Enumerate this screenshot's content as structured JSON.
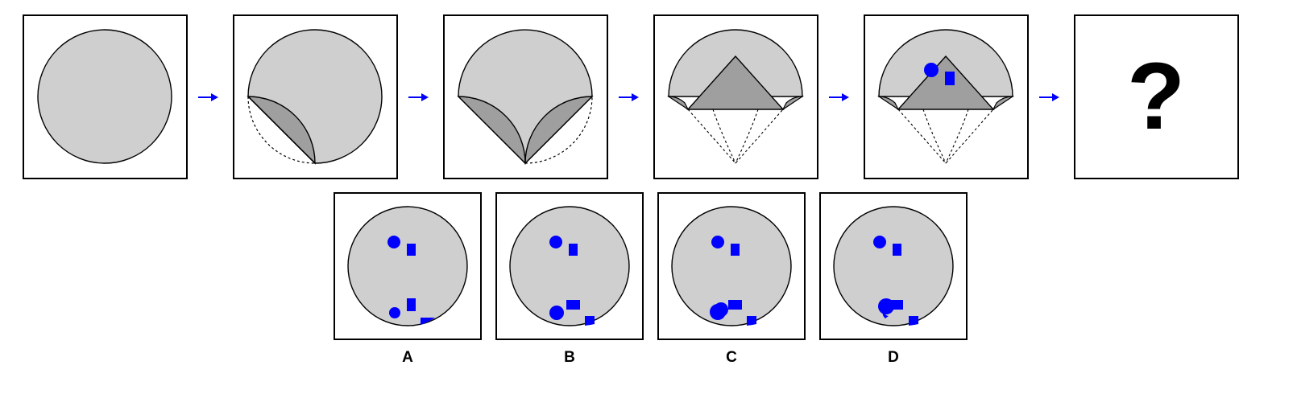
{
  "colors": {
    "paper": "#cfcfcf",
    "fold": "#9f9f9f",
    "mark": "#0000ff",
    "arrow": "#0000ff",
    "frame": "#000000",
    "background": "#ffffff"
  },
  "sequence": {
    "steps": [
      {
        "name": "step-1-whole-circle"
      },
      {
        "name": "step-2-bottom-left-fold"
      },
      {
        "name": "step-3-bottom-right-fold"
      },
      {
        "name": "step-4-bottom-tip-fold"
      },
      {
        "name": "step-5-punched"
      },
      {
        "name": "step-6-question"
      }
    ],
    "arrows": 5,
    "question_mark": "?"
  },
  "options": [
    {
      "label": "A"
    },
    {
      "label": "B"
    },
    {
      "label": "C"
    },
    {
      "label": "D"
    }
  ]
}
